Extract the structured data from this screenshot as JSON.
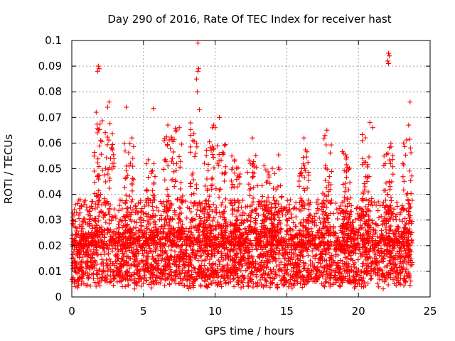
{
  "chart_data": {
    "type": "scatter",
    "title": "Day 290 of 2016, Rate Of TEC Index for receiver hast",
    "xlabel": "GPS time / hours",
    "ylabel": "ROTI / TECUs",
    "xlim": [
      0,
      25
    ],
    "ylim": [
      0,
      0.1
    ],
    "grid": true,
    "marker": "+",
    "color": "#ff0000",
    "xticks": [
      0,
      5,
      10,
      15,
      20,
      25
    ],
    "xtick_labels": [
      "0",
      "5",
      "10",
      "15",
      "20",
      "25"
    ],
    "yticks": [
      0,
      0.01,
      0.02,
      0.03,
      0.04,
      0.05,
      0.06,
      0.07,
      0.08,
      0.09,
      0.1
    ],
    "ytick_labels": [
      "0",
      "0.01",
      "0.02",
      "0.03",
      "0.04",
      "0.05",
      "0.06",
      "0.07",
      "0.08",
      "0.09",
      "0.1"
    ],
    "data_x_range": [
      0,
      23.75
    ],
    "baseline_band": [
      0.005,
      0.025
    ],
    "outliers": [
      {
        "x": 1.8,
        "y": 0.088
      },
      {
        "x": 1.85,
        "y": 0.09
      },
      {
        "x": 1.9,
        "y": 0.089
      },
      {
        "x": 2.6,
        "y": 0.076
      },
      {
        "x": 2.5,
        "y": 0.074
      },
      {
        "x": 1.7,
        "y": 0.072
      },
      {
        "x": 3.8,
        "y": 0.074
      },
      {
        "x": 5.7,
        "y": 0.0735
      },
      {
        "x": 8.8,
        "y": 0.099
      },
      {
        "x": 8.85,
        "y": 0.089
      },
      {
        "x": 8.8,
        "y": 0.088
      },
      {
        "x": 8.75,
        "y": 0.08
      },
      {
        "x": 8.7,
        "y": 0.085
      },
      {
        "x": 8.9,
        "y": 0.073
      },
      {
        "x": 10.3,
        "y": 0.07
      },
      {
        "x": 9.9,
        "y": 0.067
      },
      {
        "x": 10.0,
        "y": 0.066
      },
      {
        "x": 12.6,
        "y": 0.062
      },
      {
        "x": 17.8,
        "y": 0.065
      },
      {
        "x": 16.2,
        "y": 0.062
      },
      {
        "x": 20.8,
        "y": 0.068
      },
      {
        "x": 21.0,
        "y": 0.066
      },
      {
        "x": 22.1,
        "y": 0.095
      },
      {
        "x": 22.15,
        "y": 0.094
      },
      {
        "x": 22.05,
        "y": 0.092
      },
      {
        "x": 22.1,
        "y": 0.091
      },
      {
        "x": 23.6,
        "y": 0.076
      },
      {
        "x": 23.5,
        "y": 0.067
      },
      {
        "x": 6.7,
        "y": 0.067
      },
      {
        "x": 7.5,
        "y": 0.066
      },
      {
        "x": 4.2,
        "y": 0.062
      }
    ],
    "activity_peaks": [
      {
        "x": 1.9,
        "y": 0.07
      },
      {
        "x": 2.6,
        "y": 0.068
      },
      {
        "x": 4.0,
        "y": 0.06
      },
      {
        "x": 5.5,
        "y": 0.056
      },
      {
        "x": 6.7,
        "y": 0.064
      },
      {
        "x": 7.4,
        "y": 0.066
      },
      {
        "x": 8.6,
        "y": 0.068
      },
      {
        "x": 9.6,
        "y": 0.066
      },
      {
        "x": 10.4,
        "y": 0.06
      },
      {
        "x": 11.4,
        "y": 0.055
      },
      {
        "x": 12.6,
        "y": 0.058
      },
      {
        "x": 13.6,
        "y": 0.052
      },
      {
        "x": 14.3,
        "y": 0.056
      },
      {
        "x": 16.2,
        "y": 0.058
      },
      {
        "x": 17.8,
        "y": 0.064
      },
      {
        "x": 19.2,
        "y": 0.058
      },
      {
        "x": 20.6,
        "y": 0.064
      },
      {
        "x": 22.1,
        "y": 0.06
      },
      {
        "x": 23.4,
        "y": 0.062
      }
    ]
  }
}
